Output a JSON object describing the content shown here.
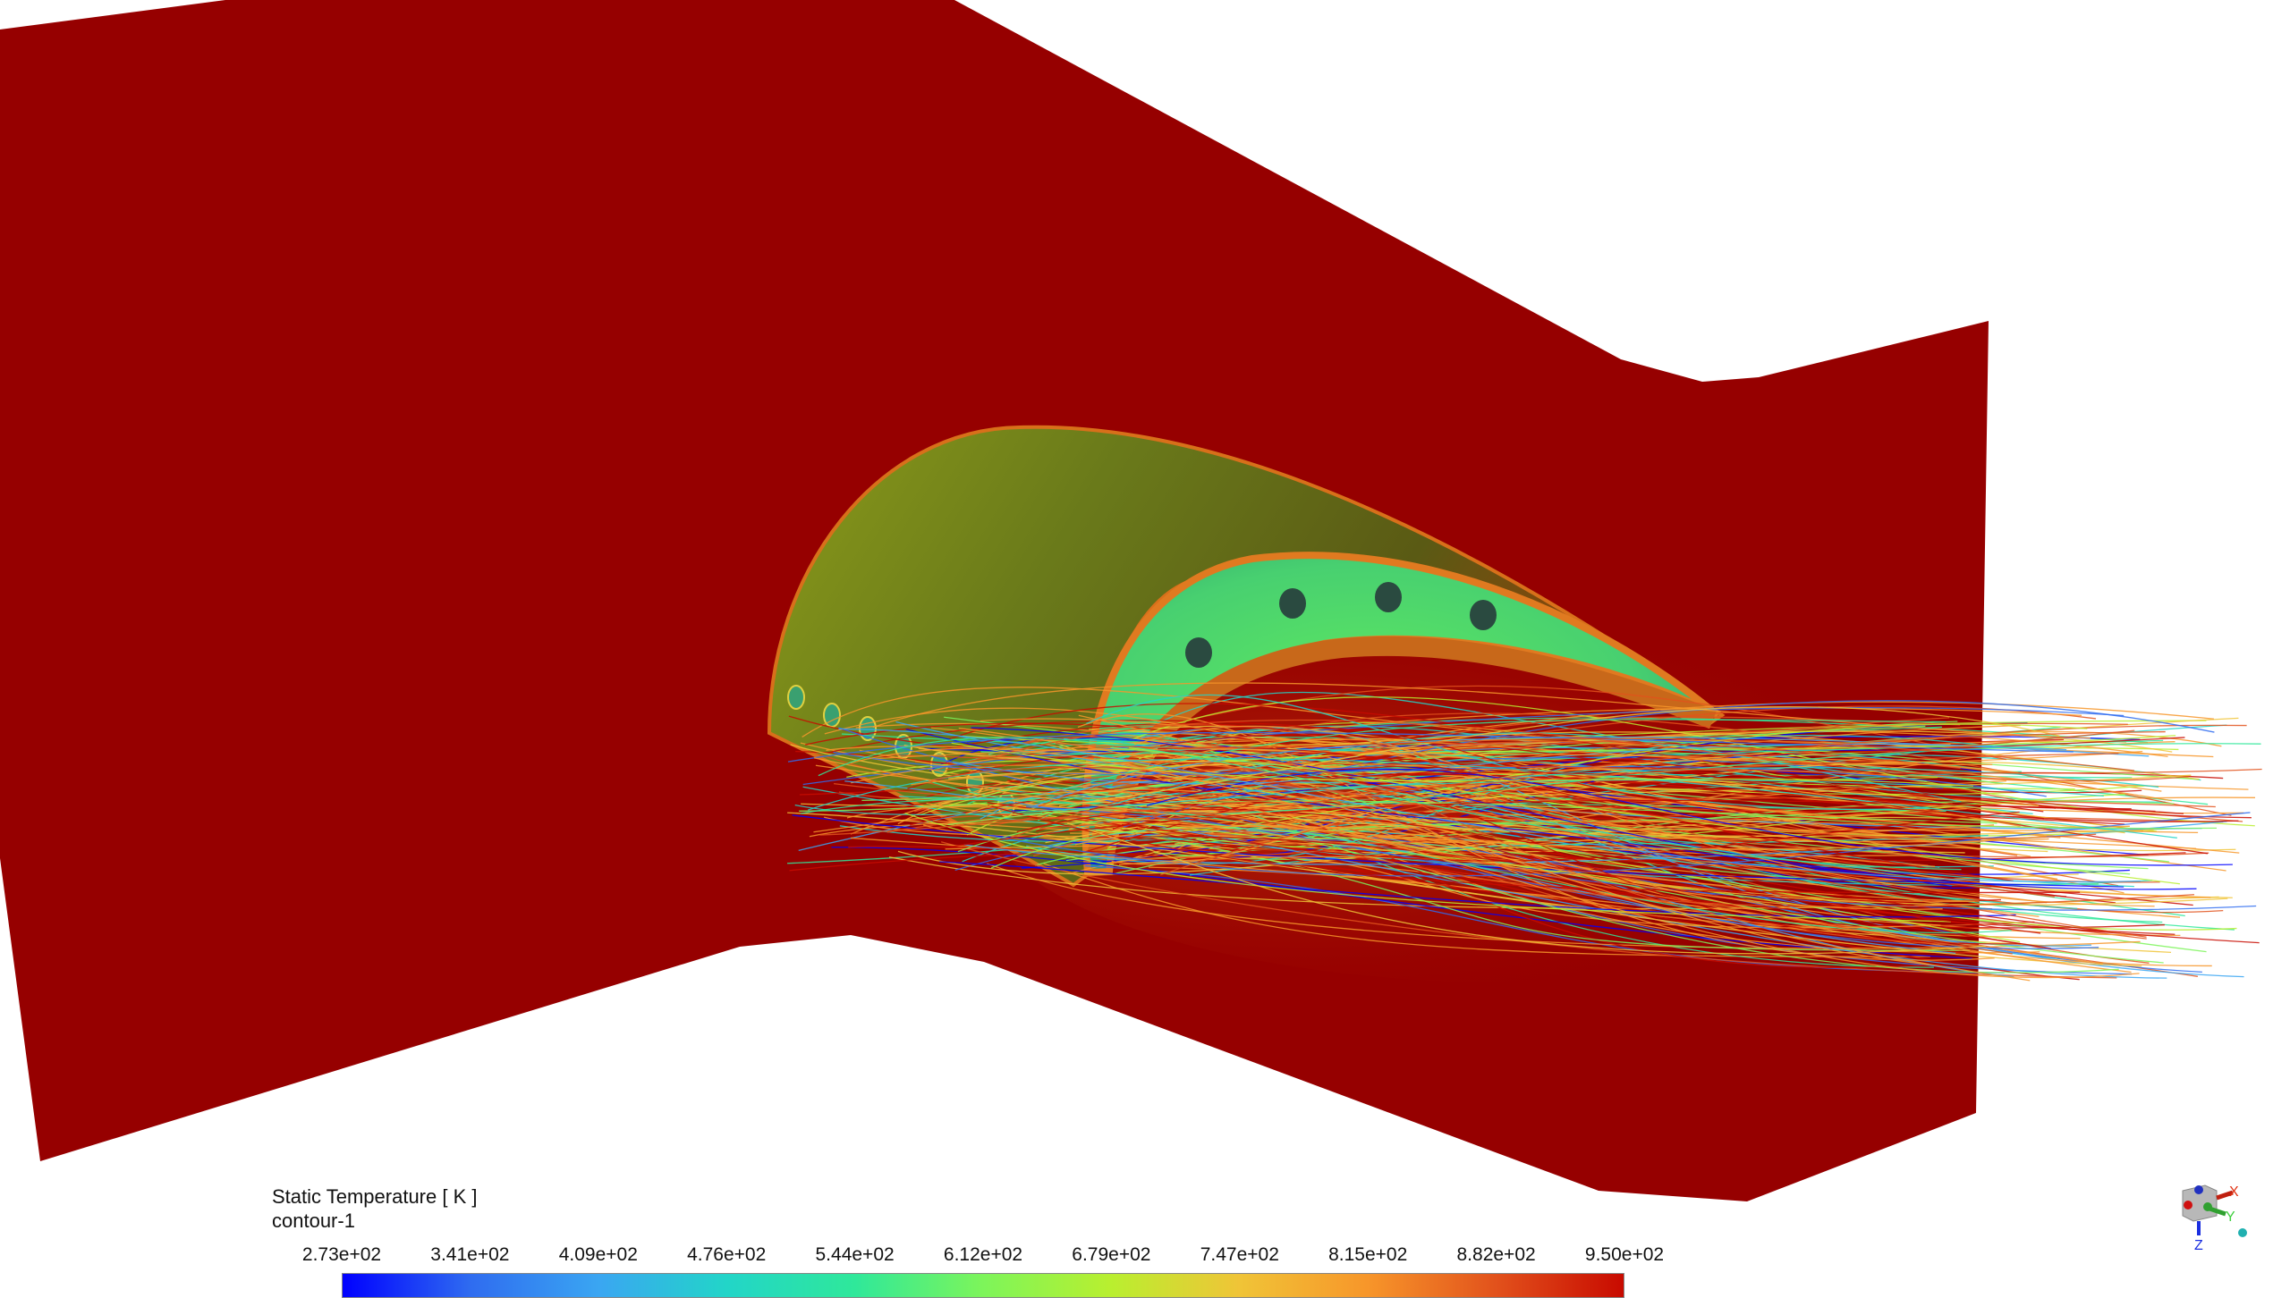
{
  "viewport": {
    "colors": {
      "domain": "#960000",
      "background": "#ffffff"
    }
  },
  "legend": {
    "title": "Static Temperature [ K ]",
    "subtitle": "contour-1",
    "tick_labels": [
      "2.73e+02",
      "3.41e+02",
      "4.09e+02",
      "4.76e+02",
      "5.44e+02",
      "6.12e+02",
      "6.79e+02",
      "7.47e+02",
      "8.15e+02",
      "8.82e+02",
      "9.50e+02"
    ],
    "min": 273,
    "max": 950,
    "colormap": [
      "#0000ff",
      "#2f6cf0",
      "#3aa6f2",
      "#22d5c8",
      "#2fe89a",
      "#7df55a",
      "#b9ef2f",
      "#f0c437",
      "#f7962a",
      "#e2521c",
      "#c80a00"
    ]
  },
  "axis_triad": {
    "x_label": "X",
    "y_label": "Y",
    "z_label": "Z",
    "x_color": "#e03010",
    "y_color": "#40d040",
    "z_color": "#1a2ee0"
  }
}
